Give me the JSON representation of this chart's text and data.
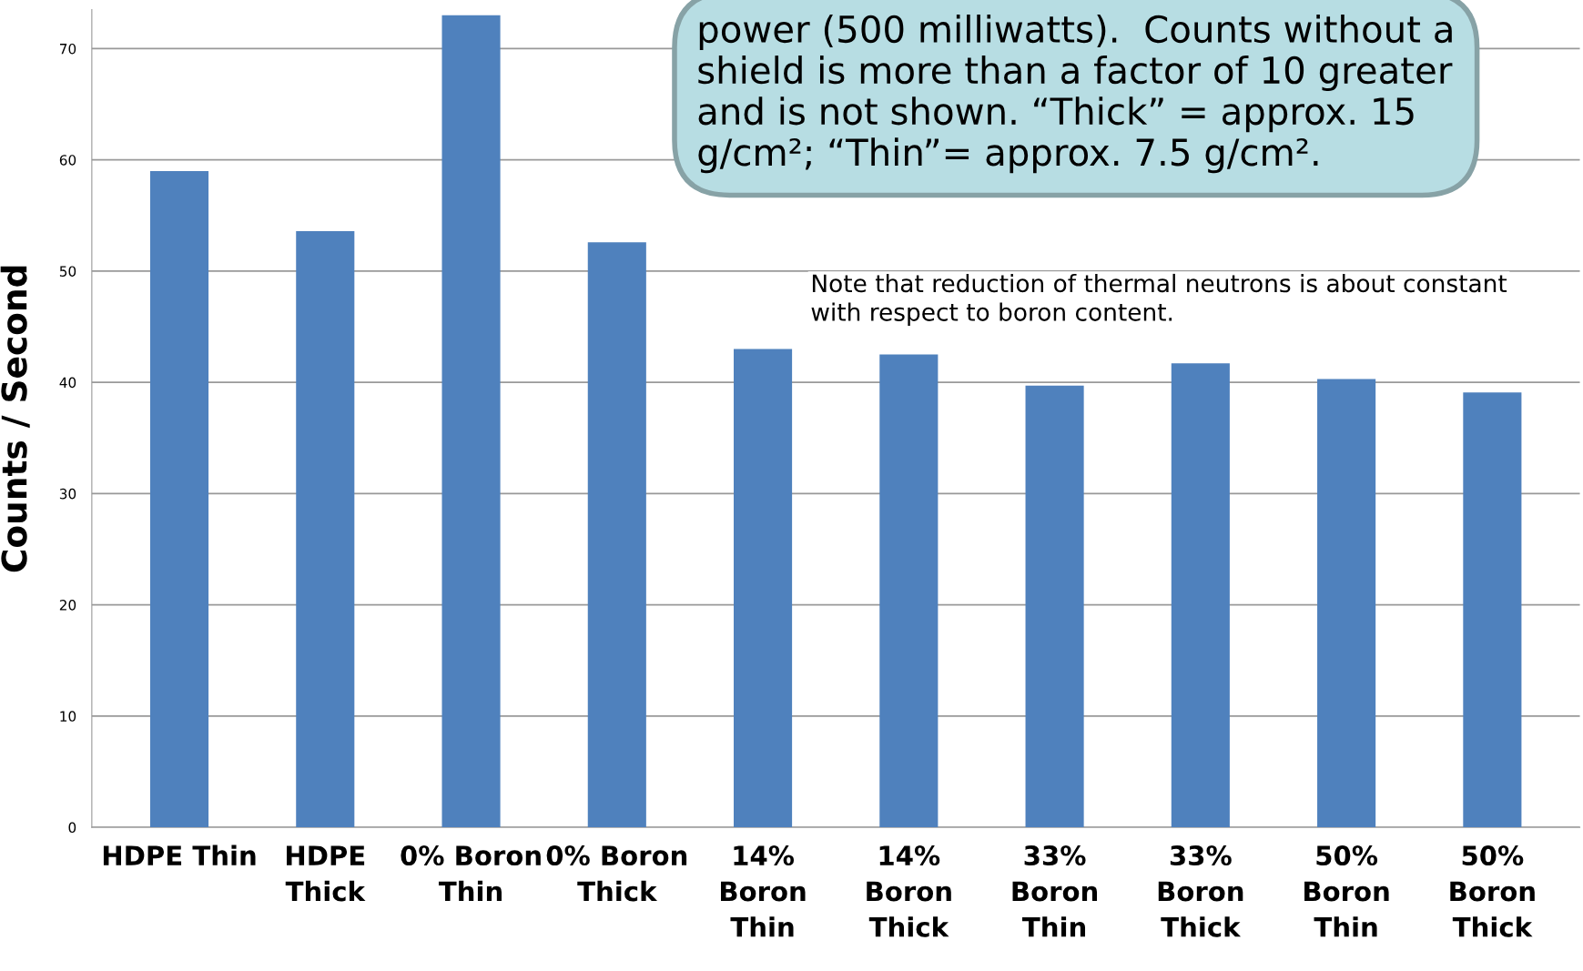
{
  "chart_data": {
    "type": "bar",
    "ylabel": "Counts / Second",
    "categories": [
      "HDPE Thin",
      "HDPE\nThick",
      "0% Boron\nThin",
      "0% Boron\nThick",
      "14%\nBoron\nThin",
      "14%\nBoron\nThick",
      "33%\nBoron\nThin",
      "33%\nBoron\nThick",
      "50%\nBoron\nThin",
      "50%\nBoron\nThick"
    ],
    "values": [
      59.0,
      53.6,
      73.0,
      52.6,
      43.0,
      42.5,
      39.7,
      41.7,
      40.3,
      39.1
    ],
    "color": "#4f81bd",
    "ylim": [
      0,
      73.5
    ],
    "yticks": [
      0,
      10,
      20,
      30,
      40,
      50,
      60,
      70
    ],
    "grid": "y",
    "legend": false,
    "annotations": [
      "power (500 milliwatts).  Counts without a\nshield is more than a factor of 10 greater\nand is not shown. “Thick” = approx. 15\ng/cm²; “Thin”= approx. 7.5 g/cm².",
      "Note that reduction of thermal neutrons is about constant\nwith respect to boron content."
    ]
  }
}
